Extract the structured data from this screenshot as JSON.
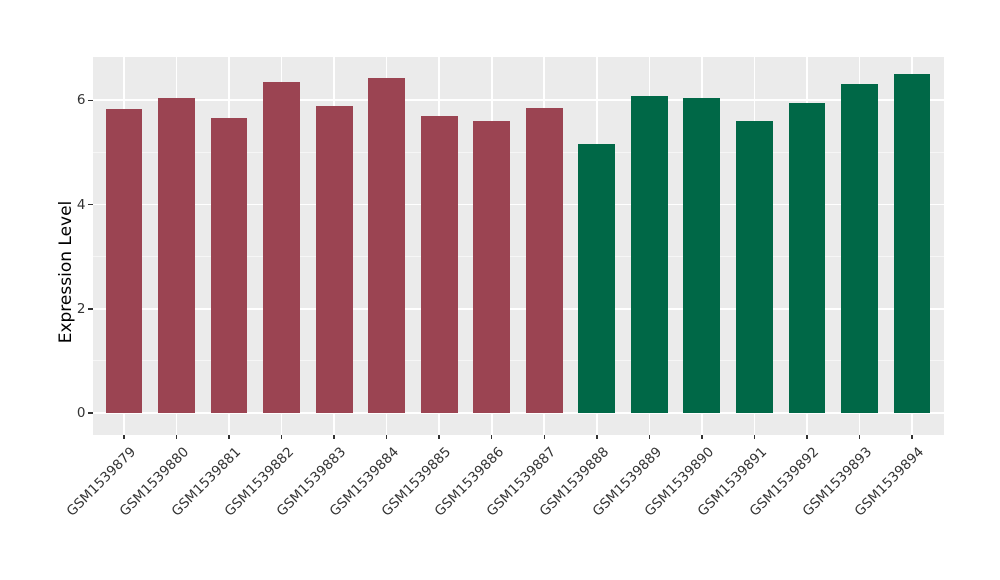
{
  "chart_data": {
    "type": "bar",
    "title": "",
    "xlabel": "",
    "ylabel": "Expression Level",
    "categories": [
      "GSM1539879",
      "GSM1539880",
      "GSM1539881",
      "GSM1539882",
      "GSM1539883",
      "GSM1539884",
      "GSM1539885",
      "GSM1539886",
      "GSM1539887",
      "GSM1539888",
      "GSM1539889",
      "GSM1539890",
      "GSM1539891",
      "GSM1539892",
      "GSM1539893",
      "GSM1539894"
    ],
    "values": [
      5.83,
      6.05,
      5.67,
      6.36,
      5.89,
      6.42,
      5.69,
      5.6,
      5.86,
      5.17,
      6.08,
      6.04,
      5.6,
      5.94,
      6.32,
      6.51
    ],
    "bar_groups": [
      "red",
      "red",
      "red",
      "red",
      "red",
      "red",
      "red",
      "red",
      "red",
      "green",
      "green",
      "green",
      "green",
      "green",
      "green",
      "green"
    ],
    "colors": {
      "red": "#9B4452",
      "green": "#006847"
    },
    "yticks": [
      0,
      2,
      4,
      6
    ],
    "ylim": [
      -0.41,
      6.84
    ],
    "grid": true,
    "legend": "none",
    "panel_bg": "#EBEBEB",
    "grid_color": "#FFFFFF",
    "tick_color": "#333333",
    "bar_width_frac": 0.7
  }
}
